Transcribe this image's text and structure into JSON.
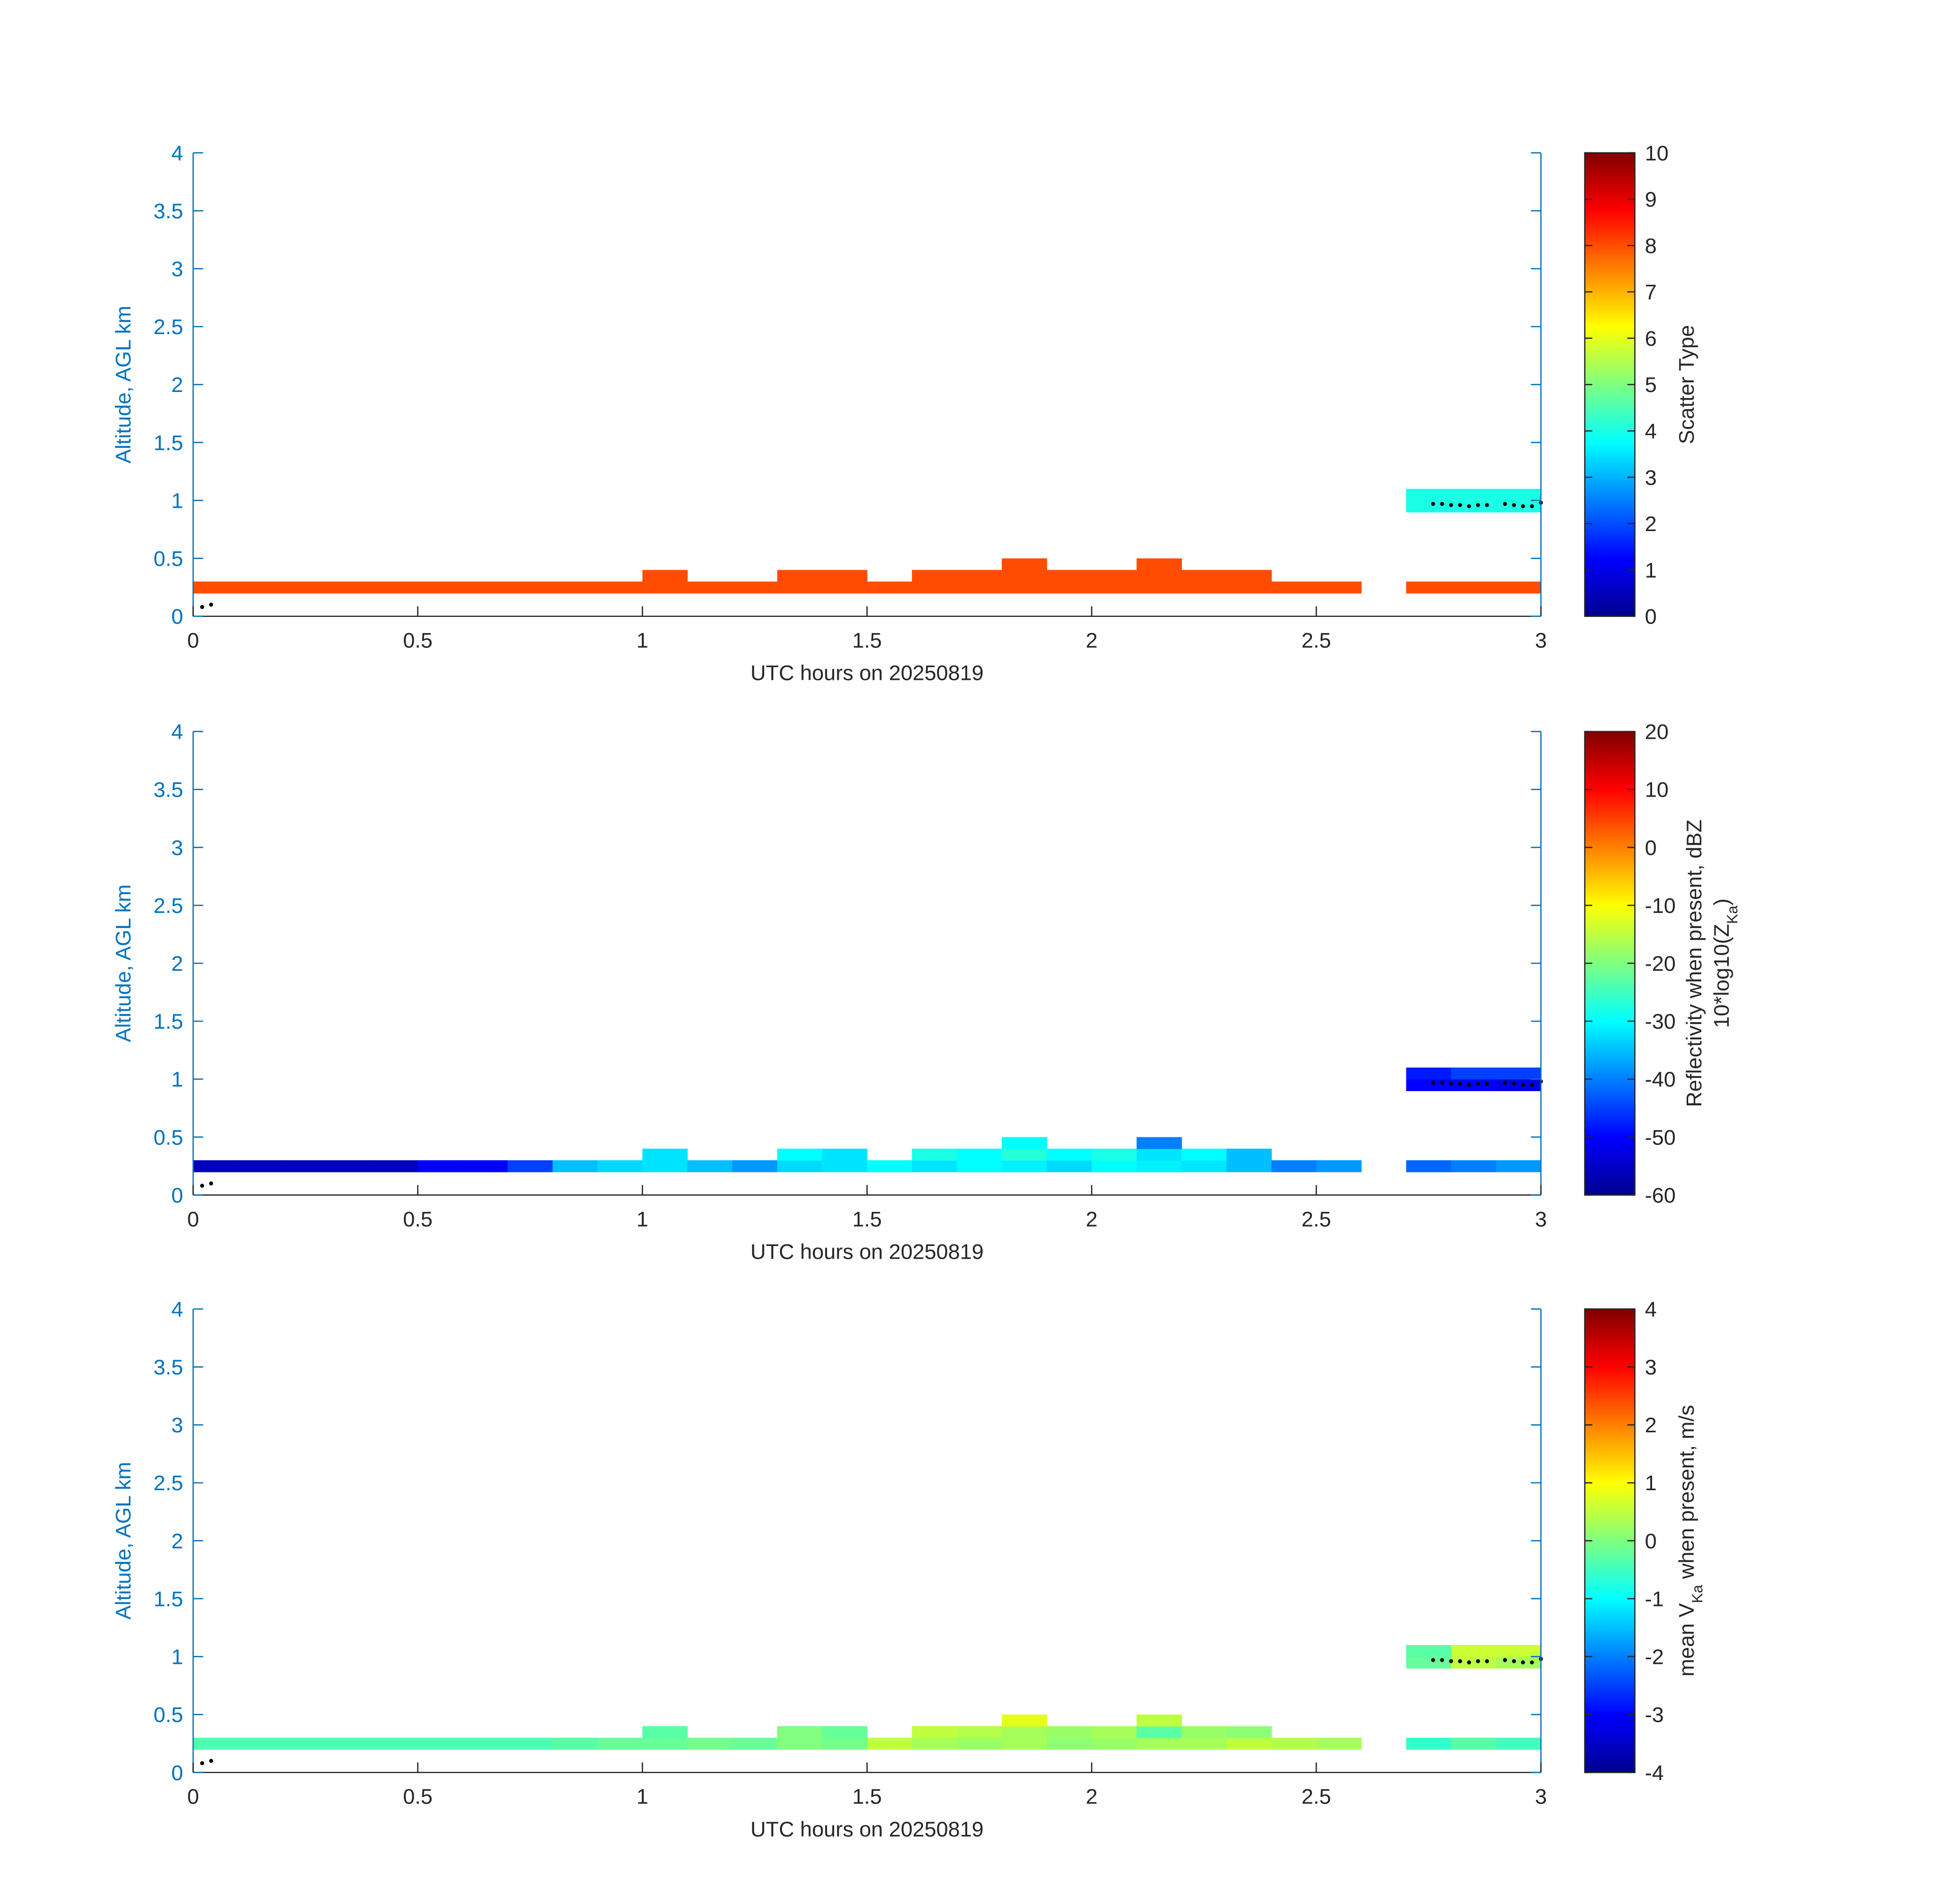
{
  "chart_data": [
    {
      "type": "heatmap",
      "xlabel": "UTC hours on 20250819",
      "ylabel": "Altitude, AGL km",
      "xlim": [
        0,
        3
      ],
      "xticks": [
        0,
        0.5,
        1,
        1.5,
        2,
        2.5,
        3
      ],
      "ylim": [
        0,
        4
      ],
      "yticks": [
        0,
        0.5,
        1,
        1.5,
        2,
        2.5,
        3,
        3.5,
        4
      ],
      "colormap": "jet",
      "clim": [
        0,
        10
      ],
      "cticks": [
        0,
        1,
        2,
        3,
        4,
        5,
        6,
        7,
        8,
        9,
        10
      ],
      "colorbar_label": [
        [
          {
            "text": "Scatter Type"
          }
        ]
      ],
      "x_edges": [
        0,
        0.1,
        0.2,
        0.3,
        0.4,
        0.5,
        0.6,
        0.7,
        0.8,
        0.9,
        1,
        1.1,
        1.2,
        1.3,
        1.4,
        1.5,
        1.6,
        1.7,
        1.8,
        1.9,
        2,
        2.1,
        2.2,
        2.3,
        2.4,
        2.5,
        2.6,
        2.7,
        2.8,
        2.9,
        3
      ],
      "rows": [
        {
          "range": [
            0.2,
            0.3
          ],
          "values": [
            8,
            8,
            8,
            8,
            8,
            8,
            8,
            8,
            8,
            8,
            8,
            8,
            8,
            8,
            8,
            8,
            8,
            8,
            8,
            8,
            8,
            8,
            8,
            8,
            8,
            8,
            null,
            8,
            8,
            8
          ]
        },
        {
          "range": [
            0.3,
            0.4
          ],
          "values": [
            null,
            null,
            null,
            null,
            null,
            null,
            null,
            null,
            null,
            null,
            8,
            null,
            null,
            8,
            8,
            null,
            8,
            8,
            8,
            8,
            8,
            8,
            8,
            8,
            null,
            null,
            null,
            null,
            null,
            null
          ]
        },
        {
          "range": [
            0.4,
            0.5
          ],
          "values": [
            null,
            null,
            null,
            null,
            null,
            null,
            null,
            null,
            null,
            null,
            null,
            null,
            null,
            null,
            null,
            null,
            null,
            null,
            8,
            null,
            null,
            8,
            null,
            null,
            null,
            null,
            null,
            null,
            null,
            null
          ]
        },
        {
          "range": [
            0.9,
            1.0
          ],
          "values": [
            null,
            null,
            null,
            null,
            null,
            null,
            null,
            null,
            null,
            null,
            null,
            null,
            null,
            null,
            null,
            null,
            null,
            null,
            null,
            null,
            null,
            null,
            null,
            null,
            null,
            null,
            null,
            4,
            4,
            4
          ]
        },
        {
          "range": [
            1.0,
            1.1
          ],
          "values": [
            null,
            null,
            null,
            null,
            null,
            null,
            null,
            null,
            null,
            null,
            null,
            null,
            null,
            null,
            null,
            null,
            null,
            null,
            null,
            null,
            null,
            null,
            null,
            null,
            null,
            null,
            null,
            4,
            4,
            4
          ]
        }
      ],
      "dots": {
        "color": "#000000",
        "x": [
          0.02,
          0.04,
          2.76,
          2.78,
          2.8,
          2.82,
          2.84,
          2.86,
          2.88,
          2.92,
          2.94,
          2.96,
          2.98,
          3.0
        ],
        "y": [
          0.08,
          0.1,
          0.97,
          0.97,
          0.96,
          0.96,
          0.95,
          0.96,
          0.96,
          0.97,
          0.96,
          0.95,
          0.95,
          0.98
        ]
      }
    },
    {
      "type": "heatmap",
      "xlabel": "UTC hours on 20250819",
      "ylabel": "Altitude, AGL km",
      "xlim": [
        0,
        3
      ],
      "xticks": [
        0,
        0.5,
        1,
        1.5,
        2,
        2.5,
        3
      ],
      "ylim": [
        0,
        4
      ],
      "yticks": [
        0,
        0.5,
        1,
        1.5,
        2,
        2.5,
        3,
        3.5,
        4
      ],
      "colormap": "jet",
      "clim": [
        -60,
        20
      ],
      "cticks": [
        -60,
        -50,
        -40,
        -30,
        -20,
        -10,
        0,
        10,
        20
      ],
      "colorbar_label": [
        [
          {
            "text": "Reflectivity when present, dBZ"
          }
        ],
        [
          {
            "text": "10*log10(Z"
          },
          {
            "text": "Ka",
            "sub": true
          },
          {
            "text": ")"
          }
        ]
      ],
      "x_edges": [
        0,
        0.1,
        0.2,
        0.3,
        0.4,
        0.5,
        0.6,
        0.7,
        0.8,
        0.9,
        1,
        1.1,
        1.2,
        1.3,
        1.4,
        1.5,
        1.6,
        1.7,
        1.8,
        1.9,
        2,
        2.1,
        2.2,
        2.3,
        2.4,
        2.5,
        2.6,
        2.7,
        2.8,
        2.9,
        3
      ],
      "rows": [
        {
          "range": [
            0.2,
            0.3
          ],
          "values": [
            -55,
            -55,
            -55,
            -55,
            -55,
            -50,
            -50,
            -45,
            -35,
            -33,
            -32,
            -35,
            -38,
            -33,
            -32,
            -30,
            -32,
            -30,
            -31,
            -33,
            -30,
            -31,
            -32,
            -35,
            -40,
            -38,
            null,
            -42,
            -40,
            -38
          ]
        },
        {
          "range": [
            0.3,
            0.4
          ],
          "values": [
            null,
            null,
            null,
            null,
            null,
            null,
            null,
            null,
            null,
            null,
            -32,
            null,
            null,
            -30,
            -32,
            null,
            -28,
            -30,
            -27,
            -30,
            -28,
            -32,
            -30,
            -35,
            null,
            null,
            null,
            null,
            null,
            null
          ]
        },
        {
          "range": [
            0.4,
            0.5
          ],
          "values": [
            null,
            null,
            null,
            null,
            null,
            null,
            null,
            null,
            null,
            null,
            null,
            null,
            null,
            null,
            null,
            null,
            null,
            null,
            -30,
            null,
            null,
            -40,
            null,
            null,
            null,
            null,
            null,
            null,
            null,
            null
          ]
        },
        {
          "range": [
            0.9,
            1.0
          ],
          "values": [
            null,
            null,
            null,
            null,
            null,
            null,
            null,
            null,
            null,
            null,
            null,
            null,
            null,
            null,
            null,
            null,
            null,
            null,
            null,
            null,
            null,
            null,
            null,
            null,
            null,
            null,
            null,
            -50,
            -50,
            -52
          ]
        },
        {
          "range": [
            1.0,
            1.1
          ],
          "values": [
            null,
            null,
            null,
            null,
            null,
            null,
            null,
            null,
            null,
            null,
            null,
            null,
            null,
            null,
            null,
            null,
            null,
            null,
            null,
            null,
            null,
            null,
            null,
            null,
            null,
            null,
            null,
            -48,
            -45,
            -45
          ]
        }
      ],
      "dots": {
        "color": "#000000",
        "x": [
          0.02,
          0.04,
          2.76,
          2.78,
          2.8,
          2.82,
          2.84,
          2.86,
          2.88,
          2.92,
          2.94,
          2.96,
          2.98,
          3.0
        ],
        "y": [
          0.08,
          0.1,
          0.97,
          0.97,
          0.96,
          0.96,
          0.95,
          0.96,
          0.96,
          0.97,
          0.96,
          0.95,
          0.95,
          0.98
        ]
      }
    },
    {
      "type": "heatmap",
      "xlabel": "UTC hours on 20250819",
      "ylabel": "Altitude, AGL km",
      "xlim": [
        0,
        3
      ],
      "xticks": [
        0,
        0.5,
        1,
        1.5,
        2,
        2.5,
        3
      ],
      "ylim": [
        0,
        4
      ],
      "yticks": [
        0,
        0.5,
        1,
        1.5,
        2,
        2.5,
        3,
        3.5,
        4
      ],
      "colormap": "jet",
      "clim": [
        -4,
        4
      ],
      "cticks": [
        -4,
        -3,
        -2,
        -1,
        0,
        1,
        2,
        3,
        4
      ],
      "colorbar_label": [
        [
          {
            "text": "mean V"
          },
          {
            "text": "Ka",
            "sub": true
          },
          {
            "text": " when present, m/s"
          }
        ]
      ],
      "x_edges": [
        0,
        0.1,
        0.2,
        0.3,
        0.4,
        0.5,
        0.6,
        0.7,
        0.8,
        0.9,
        1,
        1.1,
        1.2,
        1.3,
        1.4,
        1.5,
        1.6,
        1.7,
        1.8,
        1.9,
        2,
        2.1,
        2.2,
        2.3,
        2.4,
        2.5,
        2.6,
        2.7,
        2.8,
        2.9,
        3
      ],
      "rows": [
        {
          "range": [
            0.2,
            0.3
          ],
          "values": [
            -0.4,
            -0.4,
            -0.4,
            -0.4,
            -0.4,
            -0.4,
            -0.4,
            -0.4,
            -0.3,
            -0.2,
            -0.2,
            -0.1,
            -0.2,
            0,
            -0.1,
            0.5,
            0.3,
            0.2,
            0.3,
            0.1,
            0.2,
            0.3,
            0.3,
            0.5,
            0.4,
            0.3,
            null,
            -0.6,
            -0.3,
            -0.5
          ]
        },
        {
          "range": [
            0.3,
            0.4
          ],
          "values": [
            null,
            null,
            null,
            null,
            null,
            null,
            null,
            null,
            null,
            null,
            -0.3,
            null,
            null,
            0,
            -0.2,
            null,
            0.5,
            0.4,
            0.3,
            0.2,
            0.3,
            -0.3,
            0.2,
            0.1,
            null,
            null,
            null,
            null,
            null,
            null
          ]
        },
        {
          "range": [
            0.4,
            0.5
          ],
          "values": [
            null,
            null,
            null,
            null,
            null,
            null,
            null,
            null,
            null,
            null,
            null,
            null,
            null,
            null,
            null,
            null,
            null,
            null,
            0.8,
            null,
            null,
            0.5,
            null,
            null,
            null,
            null,
            null,
            null,
            null,
            null
          ]
        },
        {
          "range": [
            0.9,
            1.0
          ],
          "values": [
            null,
            null,
            null,
            null,
            null,
            null,
            null,
            null,
            null,
            null,
            null,
            null,
            null,
            null,
            null,
            null,
            null,
            null,
            null,
            null,
            null,
            null,
            null,
            null,
            null,
            null,
            null,
            -0.2,
            0.5,
            0.3
          ]
        },
        {
          "range": [
            1.0,
            1.1
          ],
          "values": [
            null,
            null,
            null,
            null,
            null,
            null,
            null,
            null,
            null,
            null,
            null,
            null,
            null,
            null,
            null,
            null,
            null,
            null,
            null,
            null,
            null,
            null,
            null,
            null,
            null,
            null,
            null,
            -0.3,
            0.6,
            0.6
          ]
        }
      ],
      "dots": {
        "color": "#000000",
        "x": [
          0.02,
          0.04,
          2.76,
          2.78,
          2.8,
          2.82,
          2.84,
          2.86,
          2.88,
          2.92,
          2.94,
          2.96,
          2.98,
          3.0
        ],
        "y": [
          0.08,
          0.1,
          0.97,
          0.97,
          0.96,
          0.96,
          0.95,
          0.96,
          0.96,
          0.97,
          0.96,
          0.95,
          0.95,
          0.98
        ]
      }
    }
  ]
}
